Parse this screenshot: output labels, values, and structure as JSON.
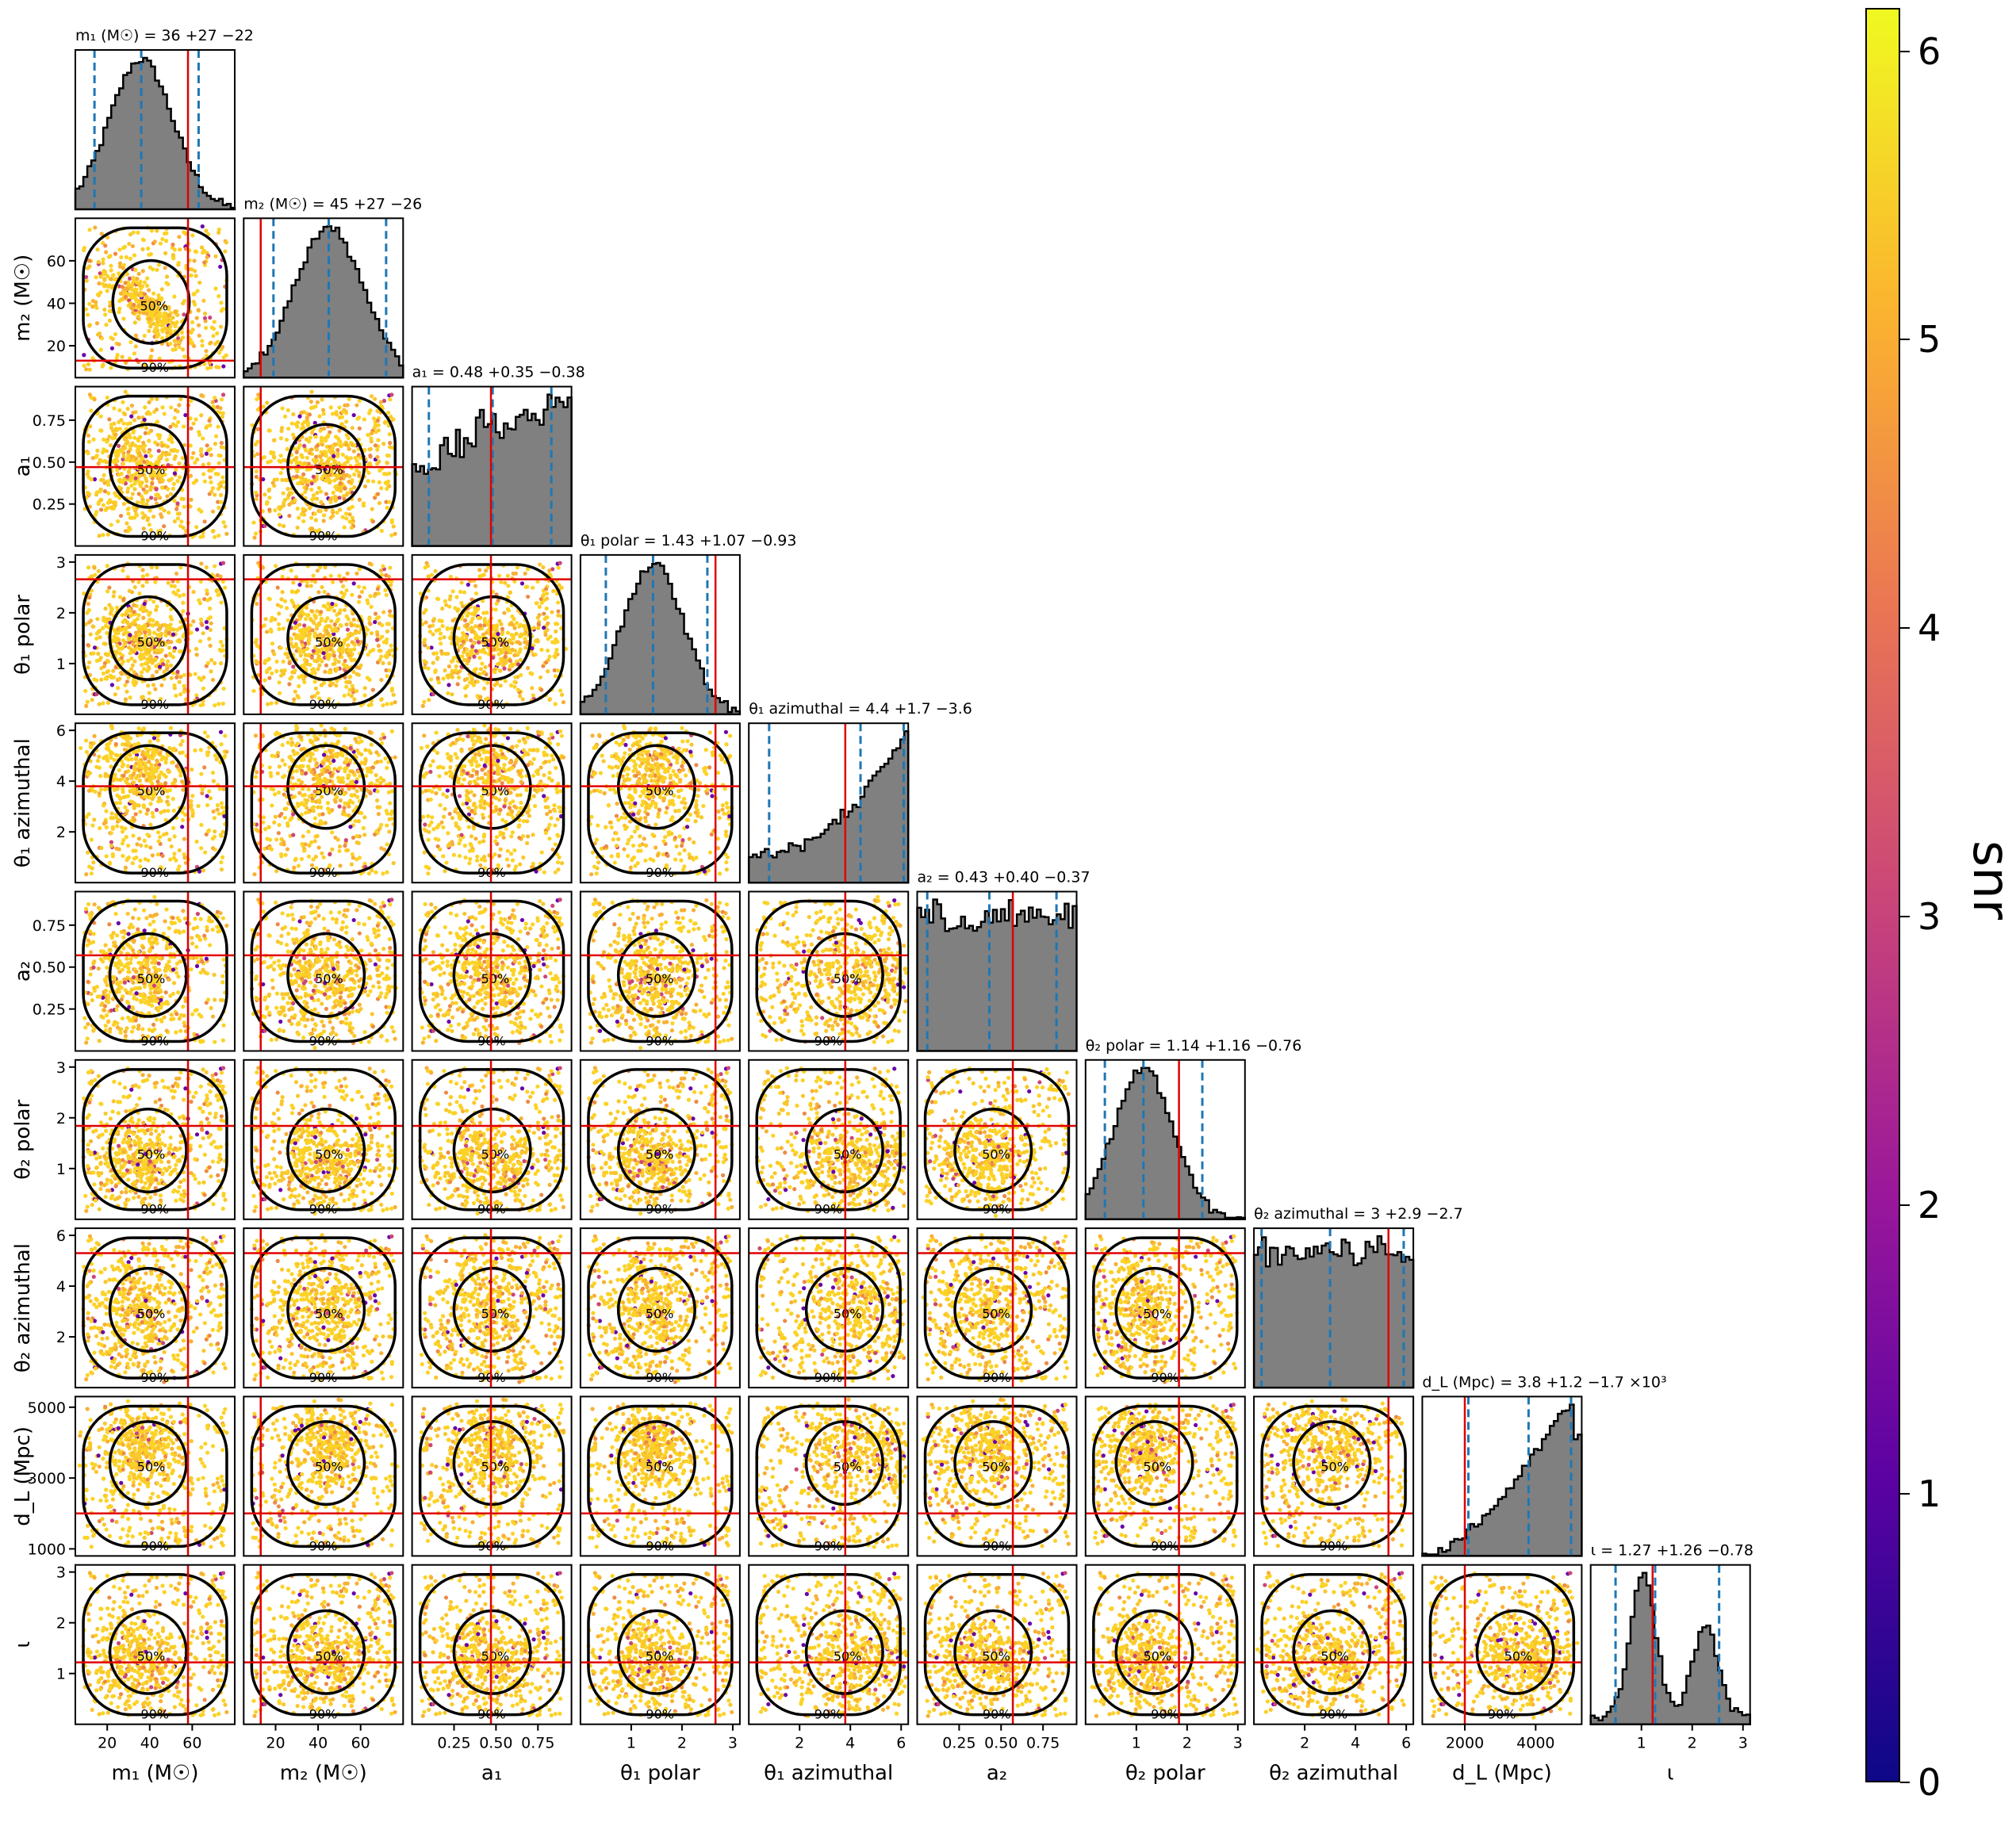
{
  "chart_data": {
    "type": "corner",
    "colorbar": {
      "label": "snr",
      "ticks": [
        0,
        1,
        2,
        3,
        4,
        5,
        6
      ],
      "range": [
        0,
        6.15
      ],
      "colormap": "plasma"
    },
    "parameters": [
      {
        "key": "m1",
        "label": "m₁ (M☉)",
        "title": "m₁ (M☉) = 36 +27 −22",
        "range": [
          5,
          80
        ],
        "ticks": [
          20,
          40,
          60
        ],
        "ticklabels": [
          "20",
          "40",
          "60"
        ],
        "median": 36,
        "lo": 14,
        "hi": 63,
        "truth": 58
      },
      {
        "key": "m2",
        "label": "m₂ (M☉)",
        "title": "m₂ (M☉) = 45 +27 −26",
        "range": [
          5,
          80
        ],
        "ticks": [
          20,
          40,
          60
        ],
        "ticklabels": [
          "20",
          "40",
          "60"
        ],
        "median": 45,
        "lo": 19,
        "hi": 72,
        "truth": 13
      },
      {
        "key": "a1",
        "label": "a₁",
        "title": "a₁ = 0.48 +0.35 −0.38",
        "range": [
          0,
          0.95
        ],
        "ticks": [
          0.25,
          0.5,
          0.75
        ],
        "ticklabels": [
          "0.25",
          "0.50",
          "0.75"
        ],
        "median": 0.48,
        "lo": 0.1,
        "hi": 0.83,
        "truth": 0.47
      },
      {
        "key": "t1p",
        "label": "θ₁ polar",
        "title": "θ₁ polar = 1.43 +1.07 −0.93",
        "range": [
          0,
          3.14
        ],
        "ticks": [
          1,
          2,
          3
        ],
        "ticklabels": [
          "1",
          "2",
          "3"
        ],
        "median": 1.43,
        "lo": 0.5,
        "hi": 2.5,
        "truth": 2.66
      },
      {
        "key": "t1a",
        "label": "θ₁ azimuthal",
        "title": "θ₁ azimuthal = 4.4 +1.7 −3.6",
        "range": [
          0,
          6.28
        ],
        "ticks": [
          2,
          4,
          6
        ],
        "ticklabels": [
          "2",
          "4",
          "6"
        ],
        "median": 4.4,
        "lo": 0.8,
        "hi": 6.1,
        "truth": 3.8
      },
      {
        "key": "a2",
        "label": "a₂",
        "title": "a₂ = 0.43 +0.40 −0.37",
        "range": [
          0,
          0.95
        ],
        "ticks": [
          0.25,
          0.5,
          0.75
        ],
        "ticklabels": [
          "0.25",
          "0.50",
          "0.75"
        ],
        "median": 0.43,
        "lo": 0.06,
        "hi": 0.83,
        "truth": 0.57
      },
      {
        "key": "t2p",
        "label": "θ₂ polar",
        "title": "θ₂ polar = 1.14 +1.16 −0.76",
        "range": [
          0,
          3.14
        ],
        "ticks": [
          1,
          2,
          3
        ],
        "ticklabels": [
          "1",
          "2",
          "3"
        ],
        "median": 1.14,
        "lo": 0.38,
        "hi": 2.3,
        "truth": 1.84
      },
      {
        "key": "t2a",
        "label": "θ₂ azimuthal",
        "title": "θ₂ azimuthal = 3 +2.9 −2.7",
        "range": [
          0,
          6.28
        ],
        "ticks": [
          2,
          4,
          6
        ],
        "ticklabels": [
          "2",
          "4",
          "6"
        ],
        "median": 3.0,
        "lo": 0.3,
        "hi": 5.9,
        "truth": 5.3
      },
      {
        "key": "dL",
        "label": "d_L (Mpc)",
        "title": "d_L (Mpc) = 3.8 +1.2 −1.7 ×10³",
        "range": [
          800,
          5300
        ],
        "ticks": [
          1000,
          3000,
          5000
        ],
        "ticklabels": [
          "1000",
          "3000",
          "5000"
        ],
        "xticks": [
          2000,
          4000
        ],
        "xticklabels": [
          "2000",
          "4000"
        ],
        "median": 3800,
        "lo": 2100,
        "hi": 5000,
        "truth": 2000
      },
      {
        "key": "iota",
        "label": "ι",
        "title": "ι = 1.27 +1.26 −0.78",
        "range": [
          0,
          3.14
        ],
        "ticks": [
          1,
          2,
          3
        ],
        "ticklabels": [
          "1",
          "2",
          "3"
        ],
        "median": 1.27,
        "lo": 0.49,
        "hi": 2.53,
        "truth": 1.22
      }
    ],
    "contour_levels": [
      "50%",
      "90%"
    ]
  }
}
